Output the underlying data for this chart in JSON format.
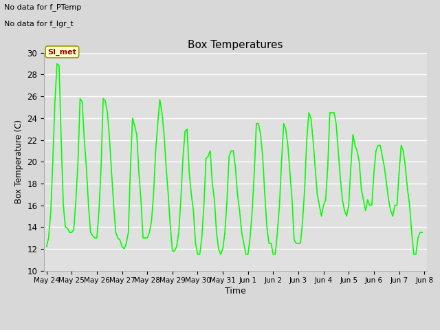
{
  "title": "Box Temperatures",
  "xlabel": "Time",
  "ylabel": "Box Temperature (C)",
  "ylim": [
    10,
    30
  ],
  "yticks": [
    10,
    12,
    14,
    16,
    18,
    20,
    22,
    24,
    26,
    28,
    30
  ],
  "fig_bg_color": "#d8d8d8",
  "plot_bg_color": "#e0e0e0",
  "line_color": "#00ff00",
  "line_width": 1.2,
  "no_data_text1": "No data for f_PTemp",
  "no_data_text2": "No data for f_lgr_t",
  "legend_line_color": "#00cc00",
  "annotation_text": "SI_met",
  "annotation_bg": "#ffffcc",
  "annotation_border": "#999900",
  "annotation_text_color": "#990000",
  "x_labels": [
    "May 24",
    "May 25",
    "May 26",
    "May 27",
    "May 28",
    "May 29",
    "May 30",
    "May 31",
    "Jun 1",
    "Jun 2",
    "Jun 3",
    "Jun 4",
    "Jun 5",
    "Jun 6",
    "Jun 7",
    "Jun 8"
  ],
  "x_values": [
    0.0,
    0.083,
    0.167,
    0.25,
    0.333,
    0.417,
    0.5,
    0.583,
    0.667,
    0.75,
    0.833,
    0.917,
    1.0,
    1.083,
    1.167,
    1.25,
    1.333,
    1.417,
    1.5,
    1.583,
    1.667,
    1.75,
    1.833,
    1.917,
    2.0,
    2.083,
    2.167,
    2.25,
    2.333,
    2.417,
    2.5,
    2.583,
    2.667,
    2.75,
    2.833,
    2.917,
    3.0,
    3.083,
    3.167,
    3.25,
    3.333,
    3.417,
    3.5,
    3.583,
    3.667,
    3.75,
    3.833,
    3.917,
    4.0,
    4.083,
    4.167,
    4.25,
    4.333,
    4.417,
    4.5,
    4.583,
    4.667,
    4.75,
    4.833,
    4.917,
    5.0,
    5.083,
    5.167,
    5.25,
    5.333,
    5.417,
    5.5,
    5.583,
    5.667,
    5.75,
    5.833,
    5.917,
    6.0,
    6.083,
    6.167,
    6.25,
    6.333,
    6.417,
    6.5,
    6.583,
    6.667,
    6.75,
    6.833,
    6.917,
    7.0,
    7.083,
    7.167,
    7.25,
    7.333,
    7.417,
    7.5,
    7.583,
    7.667,
    7.75,
    7.833,
    7.917,
    8.0,
    8.083,
    8.167,
    8.25,
    8.333,
    8.417,
    8.5,
    8.583,
    8.667,
    8.75,
    8.833,
    8.917,
    9.0,
    9.083,
    9.167,
    9.25,
    9.333,
    9.417,
    9.5,
    9.583,
    9.667,
    9.75,
    9.833,
    9.917,
    10.0,
    10.083,
    10.167,
    10.25,
    10.333,
    10.417,
    10.5,
    10.583,
    10.667,
    10.75,
    10.833,
    10.917,
    11.0,
    11.083,
    11.167,
    11.25,
    11.333,
    11.417,
    11.5,
    11.583,
    11.667,
    11.75,
    11.833,
    11.917,
    12.0,
    12.083,
    12.167,
    12.25,
    12.333,
    12.417,
    12.5,
    12.583,
    12.667,
    12.75,
    12.833,
    12.917,
    13.0,
    13.083,
    13.167,
    13.25,
    13.333,
    13.417,
    13.5,
    13.583,
    13.667,
    13.75,
    13.833,
    13.917,
    14.0,
    14.083,
    14.167,
    14.25,
    14.333,
    14.417,
    14.5,
    14.583,
    14.667,
    14.75,
    14.833,
    14.917
  ],
  "y_values": [
    12.2,
    13.0,
    15.3,
    20.0,
    25.5,
    29.0,
    28.8,
    22.0,
    16.0,
    14.0,
    13.9,
    13.5,
    13.5,
    13.8,
    16.5,
    20.0,
    25.8,
    25.5,
    22.0,
    19.5,
    16.0,
    13.5,
    13.2,
    13.0,
    13.0,
    15.5,
    19.5,
    25.8,
    25.6,
    24.5,
    22.2,
    19.0,
    16.0,
    13.5,
    13.0,
    12.8,
    12.2,
    12.0,
    12.5,
    13.5,
    19.5,
    24.0,
    23.3,
    22.5,
    19.0,
    16.5,
    13.0,
    13.0,
    13.0,
    13.5,
    14.5,
    17.0,
    21.0,
    23.5,
    25.7,
    24.5,
    22.5,
    19.5,
    17.0,
    14.0,
    11.8,
    11.8,
    12.2,
    13.5,
    16.5,
    20.3,
    22.8,
    23.0,
    19.0,
    17.0,
    15.5,
    12.5,
    11.5,
    11.5,
    13.0,
    16.0,
    20.3,
    20.5,
    21.0,
    18.0,
    16.5,
    13.5,
    12.0,
    11.5,
    12.0,
    13.5,
    16.5,
    20.5,
    21.0,
    21.0,
    19.5,
    17.0,
    15.5,
    13.5,
    12.5,
    11.5,
    11.5,
    13.0,
    15.5,
    19.0,
    23.5,
    23.5,
    22.5,
    20.5,
    17.0,
    14.0,
    12.5,
    12.5,
    11.5,
    11.5,
    13.5,
    16.0,
    20.0,
    23.5,
    23.0,
    21.5,
    19.0,
    16.5,
    12.8,
    12.5,
    12.5,
    12.5,
    14.5,
    17.5,
    22.0,
    24.5,
    24.0,
    22.0,
    19.5,
    17.0,
    16.0,
    15.0,
    16.0,
    16.5,
    19.5,
    24.5,
    24.5,
    24.5,
    23.5,
    21.0,
    18.5,
    16.5,
    15.5,
    15.0,
    16.0,
    19.5,
    22.5,
    21.5,
    21.0,
    20.0,
    17.5,
    16.5,
    15.5,
    16.5,
    16.0,
    16.0,
    19.0,
    21.0,
    21.5,
    21.5,
    20.5,
    19.5,
    18.0,
    16.5,
    15.5,
    15.0,
    16.0,
    16.0,
    19.0,
    21.5,
    21.0,
    19.5,
    17.5,
    16.0,
    13.5,
    11.5,
    11.5,
    13.0,
    13.5,
    13.5
  ]
}
